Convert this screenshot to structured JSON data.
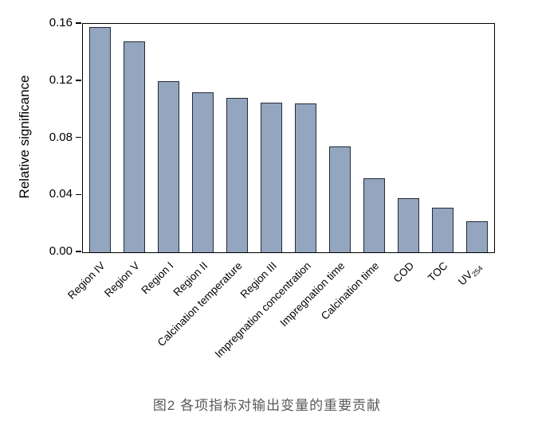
{
  "figure": {
    "caption": "图2  各项指标对输出变量的重要贡献"
  },
  "chart_data": {
    "type": "bar",
    "title": "",
    "xlabel": "",
    "ylabel": "Relative significance",
    "ylim": [
      0,
      0.16
    ],
    "yticks": [
      0,
      0.04,
      0.08,
      0.12,
      0.16
    ],
    "ytick_labels": [
      "0.00",
      "0.04",
      "0.08",
      "0.12",
      "0.16"
    ],
    "grid": false,
    "legend": false,
    "bar_fill_color": "#93a5bf",
    "bar_border_color": "#242b38",
    "axis_color": "#000000",
    "caption_color": "#595959",
    "categories": [
      {
        "text": "Region IV"
      },
      {
        "text": "Region V"
      },
      {
        "text": "Region I"
      },
      {
        "text": "Region II"
      },
      {
        "text": "Calcination temperature"
      },
      {
        "text": "Region III"
      },
      {
        "text": "Impregnation concentration"
      },
      {
        "text": "Impregnation time"
      },
      {
        "text": "Calcination time"
      },
      {
        "text": "COD"
      },
      {
        "text": "TOC"
      },
      {
        "text": "UV",
        "sub": "254"
      }
    ],
    "values": [
      0.158,
      0.148,
      0.12,
      0.112,
      0.108,
      0.105,
      0.104,
      0.074,
      0.052,
      0.038,
      0.031,
      0.022
    ]
  }
}
